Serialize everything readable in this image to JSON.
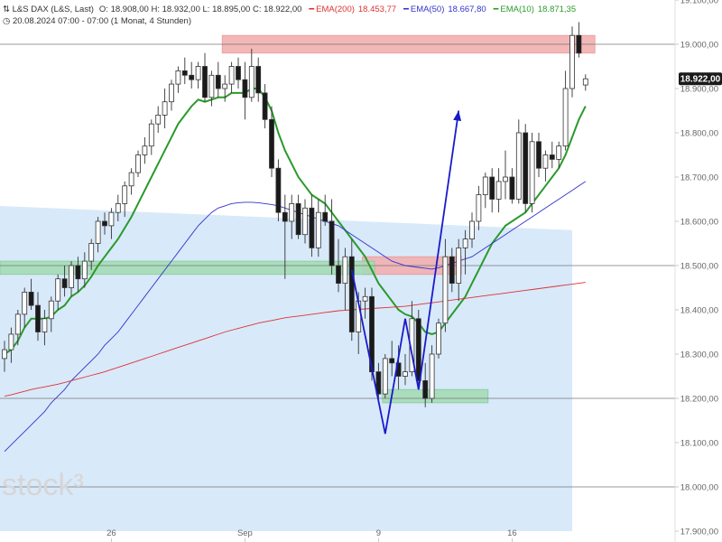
{
  "header": {
    "symbol_line_prefix": "L&S DAX (L&S, Last)",
    "ohlc_text": "O: 18.908,00  H: 18.932,00  L: 18.895,00  C: 18.922,00",
    "date_line": "20.08.2024 07:00 - 07:00   (1 Monat, 4 Stunden)",
    "ema200_label": "EMA(200)",
    "ema200_value": "18.453,77",
    "ema50_label": "EMA(50)",
    "ema50_value": "18.667,80",
    "ema10_label": "EMA(10)",
    "ema10_value": "18.871,35"
  },
  "watermark": "stock³",
  "last_price_label": "18.922,00",
  "colors": {
    "up_candle": "#ffffff",
    "down_candle": "#1a1a1a",
    "ema200": "#dd3333",
    "ema50": "#3333cc",
    "ema10": "#2a9a2a",
    "resistance_zone": "#f2b0b0",
    "support_zone": "#a6dcb6",
    "channel": "#d6e8fa",
    "w_pattern": "#1a1acc",
    "last_box": "#1a1a1a"
  },
  "chart_data": {
    "type": "candlestick",
    "y_axis": {
      "ticks": [
        "19.100,00",
        "19.000,00",
        "18.900,00",
        "18.800,00",
        "18.700,00",
        "18.600,00",
        "18.500,00",
        "18.400,00",
        "18.300,00",
        "18.200,00",
        "18.100,00",
        "18.000,00",
        "17.900,00"
      ],
      "tick_values": [
        19100,
        19000,
        18900,
        18800,
        18700,
        18600,
        18500,
        18400,
        18300,
        18200,
        18100,
        18000,
        17900
      ],
      "range": [
        17890,
        19130
      ],
      "side": "right"
    },
    "x_axis": {
      "labels": [
        "26",
        "Sep",
        "9",
        "16"
      ],
      "label_indices": [
        16,
        36,
        56,
        76
      ]
    },
    "candles": [
      [
        18290,
        18330,
        18260,
        18310
      ],
      [
        18310,
        18360,
        18280,
        18345
      ],
      [
        18345,
        18400,
        18320,
        18390
      ],
      [
        18390,
        18450,
        18360,
        18440
      ],
      [
        18440,
        18470,
        18400,
        18410
      ],
      [
        18410,
        18440,
        18330,
        18350
      ],
      [
        18350,
        18400,
        18320,
        18380
      ],
      [
        18380,
        18430,
        18350,
        18420
      ],
      [
        18420,
        18480,
        18400,
        18470
      ],
      [
        18470,
        18500,
        18430,
        18450
      ],
      [
        18450,
        18510,
        18430,
        18500
      ],
      [
        18500,
        18520,
        18440,
        18470
      ],
      [
        18470,
        18530,
        18450,
        18510
      ],
      [
        18510,
        18560,
        18490,
        18550
      ],
      [
        18550,
        18610,
        18530,
        18600
      ],
      [
        18600,
        18620,
        18570,
        18590
      ],
      [
        18590,
        18630,
        18560,
        18620
      ],
      [
        18620,
        18660,
        18600,
        18640
      ],
      [
        18640,
        18690,
        18610,
        18680
      ],
      [
        18680,
        18720,
        18660,
        18710
      ],
      [
        18710,
        18760,
        18700,
        18750
      ],
      [
        18750,
        18790,
        18730,
        18770
      ],
      [
        18770,
        18830,
        18750,
        18820
      ],
      [
        18820,
        18860,
        18800,
        18840
      ],
      [
        18840,
        18900,
        18810,
        18870
      ],
      [
        18870,
        18920,
        18850,
        18910
      ],
      [
        18910,
        18950,
        18890,
        18940
      ],
      [
        18940,
        18970,
        18910,
        18930
      ],
      [
        18930,
        18960,
        18900,
        18920
      ],
      [
        18920,
        18960,
        18900,
        18950
      ],
      [
        18950,
        18980,
        18870,
        18880
      ],
      [
        18880,
        18940,
        18860,
        18930
      ],
      [
        18930,
        18960,
        18880,
        18900
      ],
      [
        18900,
        18930,
        18870,
        18910
      ],
      [
        18910,
        18960,
        18890,
        18950
      ],
      [
        18950,
        18970,
        18900,
        18920
      ],
      [
        18920,
        18960,
        18830,
        18880
      ],
      [
        18880,
        18990,
        18870,
        18950
      ],
      [
        18950,
        18970,
        18870,
        18890
      ],
      [
        18890,
        18910,
        18810,
        18830
      ],
      [
        18830,
        18860,
        18700,
        18720
      ],
      [
        18720,
        18740,
        18600,
        18620
      ],
      [
        18620,
        18660,
        18470,
        18600
      ],
      [
        18600,
        18660,
        18560,
        18640
      ],
      [
        18640,
        18660,
        18560,
        18570
      ],
      [
        18570,
        18650,
        18550,
        18630
      ],
      [
        18630,
        18660,
        18520,
        18540
      ],
      [
        18540,
        18650,
        18520,
        18620
      ],
      [
        18620,
        18660,
        18590,
        18600
      ],
      [
        18600,
        18650,
        18480,
        18500
      ],
      [
        18500,
        18560,
        18440,
        18460
      ],
      [
        18460,
        18540,
        18400,
        18520
      ],
      [
        18520,
        18560,
        18330,
        18350
      ],
      [
        18350,
        18440,
        18300,
        18420
      ],
      [
        18420,
        18450,
        18380,
        18430
      ],
      [
        18430,
        18450,
        18240,
        18260
      ],
      [
        18260,
        18280,
        18200,
        18210
      ],
      [
        18210,
        18300,
        18200,
        18290
      ],
      [
        18290,
        18330,
        18250,
        18280
      ],
      [
        18280,
        18320,
        18220,
        18250
      ],
      [
        18250,
        18300,
        18230,
        18260
      ],
      [
        18260,
        18420,
        18250,
        18380
      ],
      [
        18380,
        18400,
        18220,
        18240
      ],
      [
        18240,
        18280,
        18180,
        18200
      ],
      [
        18200,
        18320,
        18190,
        18300
      ],
      [
        18300,
        18380,
        18290,
        18370
      ],
      [
        18370,
        18560,
        18350,
        18520
      ],
      [
        18520,
        18540,
        18440,
        18460
      ],
      [
        18460,
        18560,
        18420,
        18540
      ],
      [
        18540,
        18580,
        18480,
        18560
      ],
      [
        18560,
        18620,
        18540,
        18600
      ],
      [
        18600,
        18680,
        18580,
        18660
      ],
      [
        18660,
        18710,
        18630,
        18700
      ],
      [
        18700,
        18720,
        18620,
        18650
      ],
      [
        18650,
        18720,
        18620,
        18690
      ],
      [
        18690,
        18760,
        18650,
        18700
      ],
      [
        18700,
        18720,
        18640,
        18650
      ],
      [
        18650,
        18830,
        18640,
        18800
      ],
      [
        18800,
        18820,
        18620,
        18640
      ],
      [
        18640,
        18800,
        18620,
        18780
      ],
      [
        18780,
        18800,
        18700,
        18720
      ],
      [
        18720,
        18760,
        18690,
        18750
      ],
      [
        18750,
        18780,
        18720,
        18740
      ],
      [
        18740,
        18780,
        18720,
        18770
      ],
      [
        18770,
        18940,
        18760,
        18900
      ],
      [
        18900,
        19040,
        18880,
        19020
      ],
      [
        19020,
        19050,
        18970,
        18980
      ],
      [
        18908,
        18932,
        18895,
        18922
      ]
    ],
    "series": [
      {
        "name": "EMA(10)",
        "values": [
          18300,
          18310,
          18330,
          18360,
          18380,
          18380,
          18380,
          18385,
          18400,
          18410,
          18430,
          18440,
          18455,
          18475,
          18500,
          18520,
          18540,
          18560,
          18585,
          18610,
          18640,
          18670,
          18700,
          18730,
          18760,
          18790,
          18820,
          18840,
          18860,
          18875,
          18870,
          18875,
          18880,
          18880,
          18890,
          18890,
          18890,
          18900,
          18900,
          18880,
          18850,
          18800,
          18760,
          18730,
          18700,
          18680,
          18660,
          18650,
          18640,
          18620,
          18600,
          18580,
          18560,
          18540,
          18520,
          18490,
          18460,
          18440,
          18420,
          18400,
          18390,
          18385,
          18370,
          18350,
          18345,
          18350,
          18370,
          18390,
          18410,
          18430,
          18460,
          18490,
          18520,
          18550,
          18570,
          18590,
          18600,
          18610,
          18620,
          18640,
          18660,
          18680,
          18700,
          18720,
          18750,
          18790,
          18830,
          18860
        ]
      },
      {
        "name": "EMA(50)",
        "values": [
          18080,
          18095,
          18110,
          18125,
          18140,
          18155,
          18170,
          18190,
          18205,
          18220,
          18240,
          18255,
          18270,
          18285,
          18300,
          18320,
          18335,
          18350,
          18370,
          18390,
          18410,
          18430,
          18450,
          18470,
          18490,
          18510,
          18530,
          18550,
          18570,
          18590,
          18605,
          18620,
          18630,
          18635,
          18640,
          18642,
          18643,
          18643,
          18642,
          18640,
          18638,
          18635,
          18630,
          18625,
          18620,
          18615,
          18610,
          18605,
          18600,
          18595,
          18590,
          18580,
          18570,
          18560,
          18550,
          18540,
          18530,
          18520,
          18510,
          18505,
          18500,
          18498,
          18496,
          18494,
          18492,
          18495,
          18500,
          18505,
          18510,
          18515,
          18520,
          18530,
          18540,
          18550,
          18560,
          18570,
          18580,
          18590,
          18600,
          18610,
          18620,
          18630,
          18640,
          18650,
          18660,
          18670,
          18680,
          18690
        ]
      },
      {
        "name": "EMA(200)",
        "values": [
          18205,
          18208,
          18212,
          18216,
          18220,
          18223,
          18226,
          18229,
          18232,
          18236,
          18240,
          18244,
          18248,
          18252,
          18256,
          18260,
          18265,
          18270,
          18275,
          18280,
          18285,
          18290,
          18295,
          18300,
          18305,
          18310,
          18315,
          18320,
          18325,
          18330,
          18335,
          18340,
          18345,
          18350,
          18354,
          18358,
          18362,
          18366,
          18370,
          18373,
          18376,
          18379,
          18382,
          18384,
          18386,
          18388,
          18390,
          18392,
          18394,
          18396,
          18398,
          18399,
          18400,
          18401,
          18402,
          18403,
          18404,
          18405,
          18406,
          18407,
          18408,
          18410,
          18412,
          18414,
          18416,
          18418,
          18420,
          18422,
          18424,
          18426,
          18428,
          18430,
          18432,
          18434,
          18436,
          18438,
          18440,
          18442,
          18444,
          18446,
          18448,
          18450,
          18452,
          18454,
          18456,
          18458,
          18460,
          18462
        ]
      }
    ],
    "zones": [
      {
        "kind": "resistance",
        "from": 18980,
        "to": 19020,
        "start_index": 33,
        "end_index": 88
      },
      {
        "kind": "resistance",
        "from": 18480,
        "to": 18520,
        "start_index": 54,
        "end_index": 68
      },
      {
        "kind": "support",
        "from": 18480,
        "to": 18510,
        "start_index": 0,
        "end_index": 55
      },
      {
        "kind": "support",
        "from": 18190,
        "to": 18220,
        "start_index": 57,
        "end_index": 72
      }
    ],
    "horizontal_lines": [
      19000,
      18500,
      18200,
      18000
    ],
    "w_pattern": [
      {
        "i": 52,
        "v": 18490
      },
      {
        "i": 57,
        "v": 18120
      },
      {
        "i": 60,
        "v": 18380
      },
      {
        "i": 62,
        "v": 18220
      },
      {
        "i": 68,
        "v": 18850
      }
    ],
    "last_value": 18922
  }
}
